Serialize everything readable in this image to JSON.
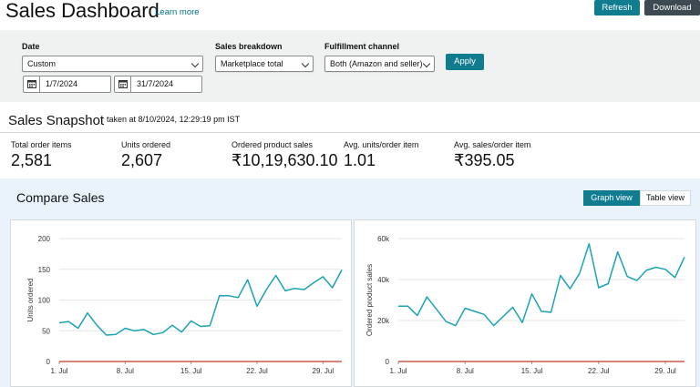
{
  "header": {
    "title": "Sales Dashboard",
    "learn_more": "Learn more",
    "refresh_label": "Refresh",
    "download_label": "Download"
  },
  "filters": {
    "date_label": "Date",
    "date_value": "Custom",
    "start_date": "1/7/2024",
    "end_date": "31/7/2024",
    "breakdown_label": "Sales breakdown",
    "breakdown_value": "Marketplace total",
    "channel_label": "Fulfillment channel",
    "channel_value": "Both (Amazon and seller)",
    "apply_label": "Apply"
  },
  "snapshot": {
    "title": "Sales Snapshot",
    "timestamp": "taken at 8/10/2024, 12:29:19 pm IST",
    "metrics": [
      {
        "label": "Total order items",
        "value": "2,581"
      },
      {
        "label": "Units ordered",
        "value": "2,607"
      },
      {
        "label": "Ordered product sales",
        "value": "₹10,19,630.10"
      },
      {
        "label": "Avg. units/order item",
        "value": "1.01"
      },
      {
        "label": "Avg. sales/order item",
        "value": "₹395.05"
      }
    ]
  },
  "compare": {
    "title": "Compare Sales",
    "graph_view_label": "Graph view",
    "table_view_label": "Table view"
  },
  "colors": {
    "accent": "#0f7c90",
    "line": "#1aa3b4",
    "baseline": "#c0392b",
    "panel_bg": "#eaf3fb",
    "filter_bg": "#f0f2f2"
  },
  "chart_data": [
    {
      "type": "line",
      "ylabel": "Units ordered",
      "ylim": [
        0,
        200
      ],
      "yticks": [
        "0",
        "50",
        "100",
        "150",
        "200"
      ],
      "xticks": [
        "1. Jul",
        "8. Jul",
        "15. Jul",
        "22. Jul",
        "29. Jul"
      ],
      "x": [
        "1",
        "2",
        "3",
        "4",
        "5",
        "6",
        "7",
        "8",
        "9",
        "10",
        "11",
        "12",
        "13",
        "14",
        "15",
        "16",
        "17",
        "18",
        "19",
        "20",
        "21",
        "22",
        "23",
        "24",
        "25",
        "26",
        "27",
        "28",
        "29",
        "30",
        "31"
      ],
      "series": [
        {
          "values": [
            63,
            65,
            54,
            79,
            59,
            43,
            44,
            54,
            50,
            52,
            44,
            47,
            59,
            48,
            66,
            57,
            58,
            107,
            107,
            104,
            133,
            90,
            117,
            140,
            115,
            119,
            117,
            128,
            138,
            120,
            149
          ]
        },
        {
          "values": [
            0,
            0,
            0,
            0,
            0,
            0,
            0,
            0,
            0,
            0,
            0,
            0,
            0,
            0,
            0,
            0,
            0,
            0,
            0,
            0,
            0,
            0,
            0,
            0,
            0,
            0,
            0,
            0,
            0,
            0,
            0
          ]
        }
      ]
    },
    {
      "type": "line",
      "ylabel": "Ordered product sales",
      "ylim": [
        0,
        60000
      ],
      "yticks": [
        "0",
        "20k",
        "40k",
        "60k"
      ],
      "xticks": [
        "1. Jul",
        "8. Jul",
        "15. Jul",
        "22. Jul",
        "29. Jul"
      ],
      "x": [
        "1",
        "2",
        "3",
        "4",
        "5",
        "6",
        "7",
        "8",
        "9",
        "10",
        "11",
        "12",
        "13",
        "14",
        "15",
        "16",
        "17",
        "18",
        "19",
        "20",
        "21",
        "22",
        "23",
        "24",
        "25",
        "26",
        "27",
        "28",
        "29",
        "30",
        "31"
      ],
      "series": [
        {
          "values": [
            27000,
            27000,
            22500,
            31500,
            25500,
            19500,
            17500,
            26000,
            24500,
            23000,
            17500,
            22000,
            26500,
            19000,
            33000,
            24500,
            24000,
            42000,
            35500,
            43000,
            57500,
            36000,
            38000,
            53500,
            41500,
            39500,
            44500,
            46000,
            45000,
            41000,
            51000
          ]
        },
        {
          "values": [
            0,
            0,
            0,
            0,
            0,
            0,
            0,
            0,
            0,
            0,
            0,
            0,
            0,
            0,
            0,
            0,
            0,
            0,
            0,
            0,
            0,
            0,
            0,
            0,
            0,
            0,
            0,
            0,
            0,
            0,
            0
          ]
        }
      ]
    }
  ]
}
